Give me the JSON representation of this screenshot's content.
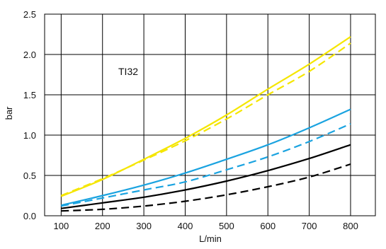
{
  "chart_data": {
    "type": "line",
    "title": "",
    "xlabel": "L/min",
    "ylabel": "bar",
    "annotation": "TI32",
    "x_ticks": [
      "100",
      "200",
      "300",
      "400",
      "500",
      "600",
      "700",
      "800"
    ],
    "y_ticks": [
      "0.0",
      "0.5",
      "1.0",
      "1.5",
      "2.0",
      "2.5"
    ],
    "xlim": [
      60,
      860
    ],
    "ylim": [
      0,
      2.5
    ],
    "grid": true,
    "legend": "none",
    "x": [
      100,
      200,
      300,
      400,
      500,
      600,
      700,
      800
    ],
    "series": [
      {
        "color": "#f5e600",
        "dashed": false,
        "values": [
          0.24,
          0.45,
          0.7,
          0.96,
          1.25,
          1.57,
          1.88,
          2.22
        ]
      },
      {
        "color": "#f5e600",
        "dashed": true,
        "values": [
          0.25,
          0.46,
          0.69,
          0.93,
          1.2,
          1.5,
          1.79,
          2.14
        ]
      },
      {
        "color": "#1aa3e0",
        "dashed": false,
        "values": [
          0.13,
          0.25,
          0.38,
          0.53,
          0.7,
          0.88,
          1.09,
          1.32
        ]
      },
      {
        "color": "#1aa3e0",
        "dashed": true,
        "values": [
          0.12,
          0.22,
          0.32,
          0.42,
          0.57,
          0.73,
          0.92,
          1.14
        ]
      },
      {
        "color": "#000000",
        "dashed": false,
        "values": [
          0.09,
          0.16,
          0.23,
          0.32,
          0.43,
          0.56,
          0.71,
          0.88
        ]
      },
      {
        "color": "#000000",
        "dashed": true,
        "values": [
          0.06,
          0.08,
          0.12,
          0.18,
          0.26,
          0.36,
          0.48,
          0.64
        ]
      }
    ]
  }
}
